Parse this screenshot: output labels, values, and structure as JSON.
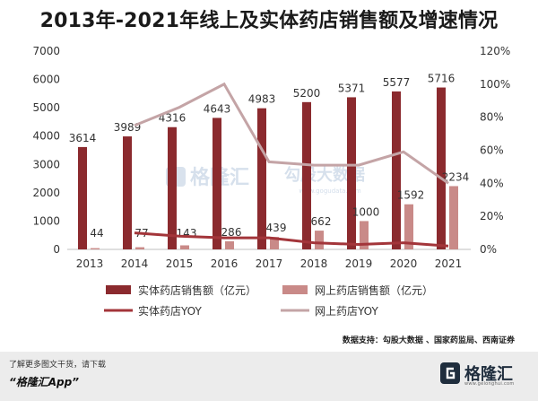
{
  "title": "2013年-2021年线上及实体药店销售额及增速情况",
  "source": "数据支持：勾股大数据 、国家药监局、西南证券",
  "footer": {
    "promo": "了解更多图文干货，请下载",
    "app": "“格隆汇App”",
    "brand_name": "格隆汇",
    "brand_url": "www.gelonghui.com"
  },
  "watermarks": {
    "glh": "格隆汇",
    "gougu": "勾股大数据",
    "gougu_url": "www.gogudata.com"
  },
  "colors": {
    "offline_bar": "#8b2a2e",
    "online_bar": "#c98a88",
    "offline_line": "#a3353a",
    "online_line": "#c4a4a6",
    "axis_text": "#333333"
  },
  "chart_data": {
    "type": "bar",
    "categories": [
      "2013",
      "2014",
      "2015",
      "2016",
      "2017",
      "2018",
      "2019",
      "2020",
      "2021"
    ],
    "series": [
      {
        "name": "实体药店销售额（亿元）",
        "type": "bar",
        "axis": "left",
        "values": [
          3614,
          3989,
          4316,
          4643,
          4983,
          5200,
          5371,
          5577,
          5716
        ]
      },
      {
        "name": "网上药店销售额（亿元）",
        "type": "bar",
        "axis": "left",
        "values": [
          44,
          77,
          143,
          286,
          439,
          662,
          1000,
          1592,
          2234
        ]
      },
      {
        "name": "实体药店YOY",
        "type": "line",
        "axis": "right",
        "values": [
          null,
          10,
          8,
          7,
          7,
          4,
          3,
          4,
          2
        ]
      },
      {
        "name": "网上药店YOY",
        "type": "line",
        "axis": "right",
        "values": [
          null,
          75,
          86,
          100,
          53,
          51,
          51,
          59,
          40
        ]
      }
    ],
    "y_left": {
      "range": [
        0,
        7000
      ],
      "ticks": [
        "0",
        "1000",
        "2000",
        "3000",
        "4000",
        "5000",
        "6000",
        "7000"
      ]
    },
    "y_right": {
      "range": [
        0,
        120
      ],
      "ticks": [
        "0%",
        "20%",
        "40%",
        "60%",
        "80%",
        "100%",
        "120%"
      ]
    },
    "legend": {
      "placement": "bottom"
    }
  }
}
